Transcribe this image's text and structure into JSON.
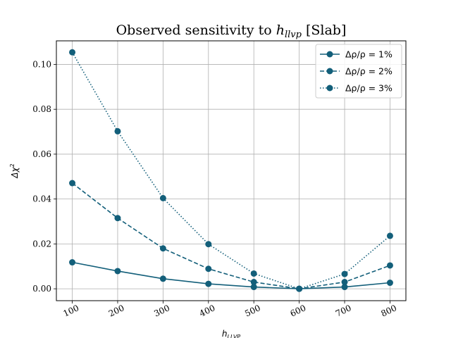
{
  "chart_data": {
    "type": "line",
    "title": "Observed sensitivity to $h_{llvp}$ [Slab]",
    "title_parts": {
      "prefix": "Observed sensitivity to ",
      "var_main": "h",
      "var_sub": "llvp",
      "suffix": " [Slab]"
    },
    "xlabel": "h_LLVP",
    "xlabel_parts": {
      "main": "h",
      "sub": "LLVP"
    },
    "ylabel": "Δχ²",
    "ylabel_parts": {
      "main": "Δχ",
      "sup": "2"
    },
    "x": [
      100,
      200,
      300,
      400,
      500,
      600,
      700,
      800
    ],
    "x_tick_labels": [
      "100",
      "200",
      "300",
      "400",
      "500",
      "600",
      "700",
      "800"
    ],
    "y_ticks": [
      0.0,
      0.02,
      0.04,
      0.06,
      0.08,
      0.1
    ],
    "y_tick_labels": [
      "0.00",
      "0.02",
      "0.04",
      "0.06",
      "0.08",
      "0.10"
    ],
    "xlim": [
      65,
      835
    ],
    "ylim": [
      -0.0053,
      0.1105
    ],
    "grid": true,
    "legend_position": "top-right",
    "color": "#135f7a",
    "series": [
      {
        "name": "Δρ/ρ = 1%",
        "linestyle": "solid",
        "values": [
          0.0118,
          0.0079,
          0.0045,
          0.0022,
          0.0008,
          0.0,
          0.0008,
          0.0027
        ]
      },
      {
        "name": "Δρ/ρ = 2%",
        "linestyle": "dashed",
        "values": [
          0.0471,
          0.0315,
          0.018,
          0.0089,
          0.003,
          0.0,
          0.003,
          0.0104
        ]
      },
      {
        "name": "Δρ/ρ = 3%",
        "linestyle": "dotted",
        "values": [
          0.1054,
          0.0702,
          0.0404,
          0.0199,
          0.0068,
          0.0,
          0.0066,
          0.0236
        ]
      }
    ]
  }
}
